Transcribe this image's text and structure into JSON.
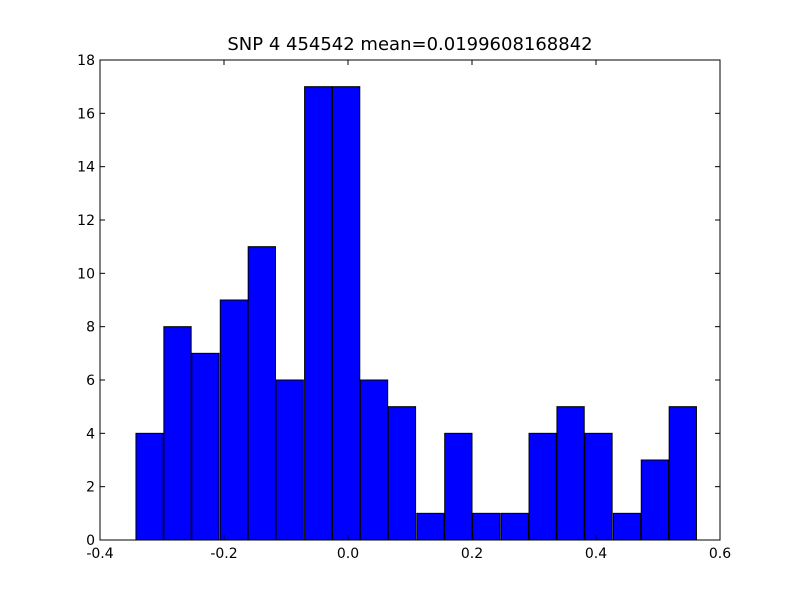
{
  "chart_data": {
    "type": "bar",
    "title": "SNP 4 454542 mean=0.0199608168842",
    "xlabel": "",
    "ylabel": "",
    "xlim": [
      -0.4,
      0.6
    ],
    "ylim": [
      0,
      18
    ],
    "grid": false,
    "x_ticks": [
      "-0.4",
      "-0.2",
      "0.0",
      "0.2",
      "0.4",
      "0.6"
    ],
    "y_ticks": [
      "0",
      "2",
      "4",
      "6",
      "8",
      "10",
      "12",
      "14",
      "16",
      "18"
    ],
    "bar_color": "#0000ff",
    "bar_edge_color": "#000000",
    "bins": [
      {
        "left": -0.342,
        "right": -0.298,
        "count": 4
      },
      {
        "left": -0.297,
        "right": -0.253,
        "count": 8
      },
      {
        "left": -0.252,
        "right": -0.208,
        "count": 7
      },
      {
        "left": -0.206,
        "right": -0.162,
        "count": 9
      },
      {
        "left": -0.161,
        "right": -0.117,
        "count": 11
      },
      {
        "left": -0.116,
        "right": -0.072,
        "count": 6
      },
      {
        "left": -0.07,
        "right": -0.026,
        "count": 17
      },
      {
        "left": -0.025,
        "right": 0.019,
        "count": 17
      },
      {
        "left": 0.02,
        "right": 0.064,
        "count": 6
      },
      {
        "left": 0.065,
        "right": 0.109,
        "count": 5
      },
      {
        "left": 0.111,
        "right": 0.155,
        "count": 1
      },
      {
        "left": 0.156,
        "right": 0.2,
        "count": 4
      },
      {
        "left": 0.201,
        "right": 0.245,
        "count": 1
      },
      {
        "left": 0.247,
        "right": 0.291,
        "count": 1
      },
      {
        "left": 0.292,
        "right": 0.336,
        "count": 4
      },
      {
        "left": 0.337,
        "right": 0.381,
        "count": 5
      },
      {
        "left": 0.382,
        "right": 0.426,
        "count": 4
      },
      {
        "left": 0.428,
        "right": 0.472,
        "count": 1
      },
      {
        "left": 0.473,
        "right": 0.517,
        "count": 3
      },
      {
        "left": 0.518,
        "right": 0.562,
        "count": 5
      }
    ]
  }
}
